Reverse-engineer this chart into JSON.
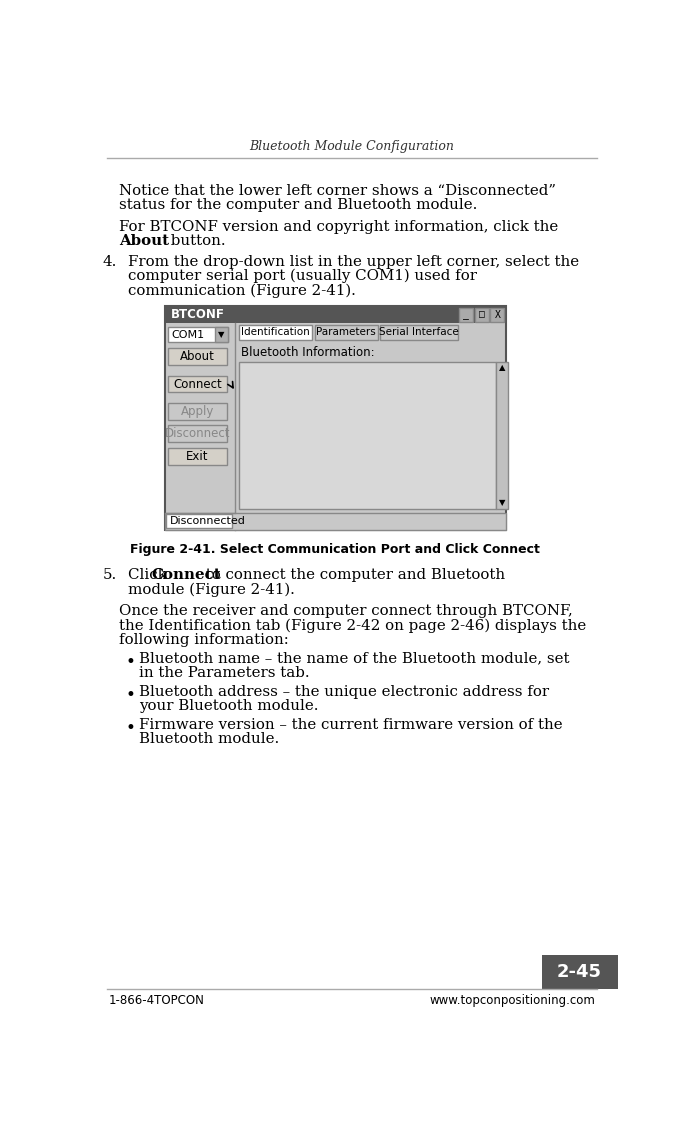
{
  "page_title": "Bluetooth Module Configuration",
  "footer_left": "1-866-4TOPCON",
  "footer_right": "www.topconpositioning.com",
  "page_number": "2-45",
  "background_color": "#ffffff",
  "text_color": "#000000",
  "header_line_color": "#aaaaaa",
  "footer_line_color": "#aaaaaa",
  "page_num_bg": "#555555",
  "page_num_text": "#ffffff",
  "gui_window": {
    "title": "BTCONF",
    "title_bar_color": "#333333",
    "title_text_color": "#ffffff",
    "bg_color": "#c0c0c0",
    "border_color": "#333333",
    "com_port": "COM1",
    "tabs": [
      "Identification",
      "Parameters",
      "Serial Interface"
    ],
    "buttons": [
      "About",
      "Connect",
      "Apply",
      "Disconnect",
      "Exit"
    ],
    "status_bar": "Disconnected"
  }
}
